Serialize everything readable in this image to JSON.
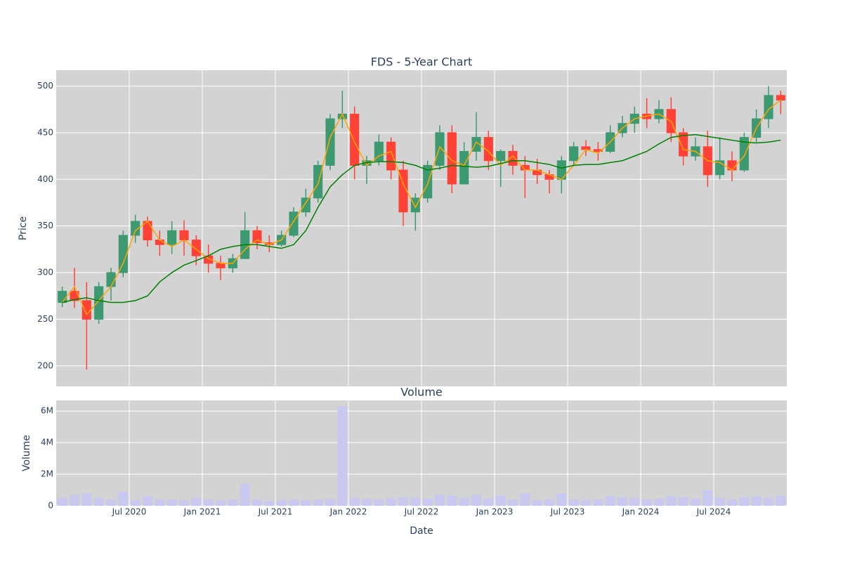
{
  "chart_data": [
    {
      "type": "candlestick",
      "title": "FDS - 5-Year Chart",
      "y_label": "Price",
      "x": [
        "2020-01",
        "2020-02",
        "2020-03",
        "2020-04",
        "2020-05",
        "2020-06",
        "2020-07",
        "2020-08",
        "2020-09",
        "2020-10",
        "2020-11",
        "2020-12",
        "2021-01",
        "2021-02",
        "2021-03",
        "2021-04",
        "2021-05",
        "2021-06",
        "2021-07",
        "2021-08",
        "2021-09",
        "2021-10",
        "2021-11",
        "2021-12",
        "2022-01",
        "2022-02",
        "2022-03",
        "2022-04",
        "2022-05",
        "2022-06",
        "2022-07",
        "2022-08",
        "2022-09",
        "2022-10",
        "2022-11",
        "2022-12",
        "2023-01",
        "2023-02",
        "2023-03",
        "2023-04",
        "2023-05",
        "2023-06",
        "2023-07",
        "2023-08",
        "2023-09",
        "2023-10",
        "2023-11",
        "2023-12",
        "2024-01",
        "2024-02",
        "2024-03",
        "2024-04",
        "2024-05",
        "2024-06",
        "2024-07",
        "2024-08",
        "2024-09",
        "2024-10",
        "2024-11",
        "2024-12"
      ],
      "open": [
        268,
        280,
        270,
        250,
        285,
        300,
        340,
        355,
        335,
        330,
        345,
        335,
        318,
        310,
        305,
        315,
        345,
        332,
        330,
        340,
        365,
        380,
        415,
        465,
        470,
        415,
        420,
        440,
        410,
        365,
        380,
        415,
        450,
        395,
        430,
        445,
        420,
        430,
        415,
        410,
        405,
        400,
        420,
        435,
        432,
        430,
        450,
        460,
        470,
        465,
        475,
        450,
        425,
        435,
        405,
        420,
        410,
        445,
        465,
        490
      ],
      "high": [
        285,
        305,
        290,
        290,
        305,
        345,
        362,
        360,
        345,
        355,
        356,
        340,
        330,
        318,
        320,
        365,
        350,
        340,
        345,
        370,
        390,
        420,
        470,
        495,
        478,
        425,
        448,
        445,
        420,
        385,
        420,
        458,
        458,
        440,
        472,
        452,
        432,
        437,
        425,
        422,
        410,
        425,
        440,
        442,
        440,
        458,
        468,
        478,
        487,
        485,
        488,
        455,
        445,
        452,
        445,
        430,
        450,
        475,
        500,
        495
      ],
      "low": [
        263,
        262,
        196,
        245,
        270,
        295,
        332,
        328,
        318,
        320,
        318,
        308,
        300,
        292,
        300,
        315,
        325,
        322,
        328,
        338,
        360,
        375,
        410,
        455,
        400,
        395,
        415,
        400,
        350,
        345,
        375,
        410,
        385,
        395,
        420,
        410,
        392,
        405,
        380,
        395,
        385,
        385,
        415,
        425,
        420,
        428,
        445,
        450,
        455,
        460,
        440,
        415,
        420,
        392,
        400,
        398,
        408,
        440,
        455,
        470
      ],
      "close": [
        280,
        270,
        250,
        285,
        300,
        340,
        355,
        335,
        330,
        345,
        335,
        318,
        310,
        305,
        315,
        345,
        332,
        330,
        340,
        365,
        380,
        415,
        465,
        470,
        415,
        420,
        440,
        410,
        365,
        380,
        415,
        450,
        395,
        430,
        445,
        420,
        430,
        415,
        410,
        405,
        400,
        420,
        435,
        432,
        430,
        450,
        460,
        470,
        465,
        475,
        450,
        425,
        435,
        405,
        420,
        410,
        445,
        465,
        490,
        485
      ],
      "increasing_color": "#3d9970",
      "decreasing_color": "#ff4136",
      "series": [
        {
          "color": "#ffa500",
          "values": [
            268,
            285,
            255,
            270,
            285,
            310,
            345,
            355,
            335,
            328,
            335,
            325,
            315,
            310,
            310,
            325,
            335,
            330,
            335,
            355,
            375,
            395,
            445,
            470,
            440,
            415,
            425,
            430,
            395,
            370,
            395,
            435,
            420,
            415,
            440,
            430,
            415,
            425,
            410,
            410,
            405,
            400,
            415,
            432,
            428,
            440,
            455,
            465,
            468,
            470,
            462,
            432,
            430,
            420,
            418,
            410,
            425,
            455,
            475,
            485
          ]
        },
        {
          "color": "#008000",
          "values": [
            268,
            271,
            273,
            270,
            268,
            268,
            270,
            275,
            290,
            300,
            308,
            313,
            318,
            325,
            328,
            330,
            330,
            328,
            326,
            330,
            345,
            370,
            392,
            405,
            415,
            418,
            419,
            419,
            418,
            415,
            410,
            412,
            415,
            414,
            413,
            414,
            417,
            420,
            420,
            418,
            416,
            412,
            415,
            416,
            416,
            418,
            420,
            425,
            430,
            438,
            445,
            447,
            448,
            446,
            444,
            442,
            440,
            439,
            440,
            442
          ]
        }
      ],
      "ylim": [
        178,
        517
      ],
      "yticks": [
        200,
        250,
        300,
        350,
        400,
        450,
        500
      ],
      "grid": true
    },
    {
      "type": "bar",
      "title": "Volume",
      "y_label": "Volume",
      "x_label": "Date",
      "x": [
        "2020-01",
        "2020-02",
        "2020-03",
        "2020-04",
        "2020-05",
        "2020-06",
        "2020-07",
        "2020-08",
        "2020-09",
        "2020-10",
        "2020-11",
        "2020-12",
        "2021-01",
        "2021-02",
        "2021-03",
        "2021-04",
        "2021-05",
        "2021-06",
        "2021-07",
        "2021-08",
        "2021-09",
        "2021-10",
        "2021-11",
        "2021-12",
        "2022-01",
        "2022-02",
        "2022-03",
        "2022-04",
        "2022-05",
        "2022-06",
        "2022-07",
        "2022-08",
        "2022-09",
        "2022-10",
        "2022-11",
        "2022-12",
        "2023-01",
        "2023-02",
        "2023-03",
        "2023-04",
        "2023-05",
        "2023-06",
        "2023-07",
        "2023-08",
        "2023-09",
        "2023-10",
        "2023-11",
        "2023-12",
        "2024-01",
        "2024-02",
        "2024-03",
        "2024-04",
        "2024-05",
        "2024-06",
        "2024-07",
        "2024-08",
        "2024-09",
        "2024-10",
        "2024-11",
        "2024-12"
      ],
      "values": [
        500000,
        700000,
        800000,
        500000,
        400000,
        900000,
        350000,
        600000,
        400000,
        400000,
        350000,
        500000,
        400000,
        350000,
        400000,
        1400000,
        400000,
        300000,
        350000,
        400000,
        350000,
        400000,
        450000,
        6300000,
        500000,
        450000,
        400000,
        500000,
        550000,
        500000,
        450000,
        700000,
        650000,
        500000,
        700000,
        450000,
        650000,
        400000,
        800000,
        350000,
        400000,
        800000,
        400000,
        350000,
        400000,
        600000,
        550000,
        500000,
        400000,
        450000,
        600000,
        550000,
        450000,
        1000000,
        500000,
        400000,
        550000,
        600000,
        500000,
        650000
      ],
      "color": "#c8c8f0",
      "ylim": [
        0,
        6670000
      ],
      "yticks": [
        0,
        {
          "value": 2000000,
          "label": "2M"
        },
        {
          "value": 4000000,
          "label": "4M"
        },
        {
          "value": 6000000,
          "label": "6M"
        }
      ],
      "xticks": [
        {
          "value": "2020-07",
          "label": "Jul 2020"
        },
        {
          "value": "2021-01",
          "label": "Jan 2021"
        },
        {
          "value": "2021-07",
          "label": "Jul 2021"
        },
        {
          "value": "2022-01",
          "label": "Jan 2022"
        },
        {
          "value": "2022-07",
          "label": "Jul 2022"
        },
        {
          "value": "2023-01",
          "label": "Jan 2023"
        },
        {
          "value": "2023-07",
          "label": "Jul 2023"
        },
        {
          "value": "2024-01",
          "label": "Jan 2024"
        },
        {
          "value": "2024-07",
          "label": "Jul 2024"
        }
      ],
      "grid": true
    }
  ]
}
